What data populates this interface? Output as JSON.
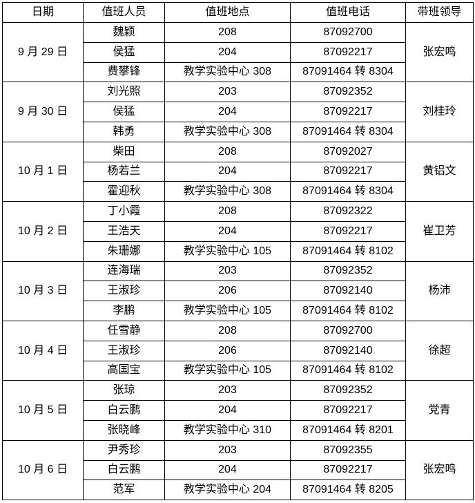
{
  "headers": [
    "日期",
    "值班人员",
    "值班地点",
    "值班电话",
    "带班领导"
  ],
  "days": [
    {
      "date": "9 月 29 日",
      "leader": "张宏鸣",
      "staff": [
        {
          "name": "魏颖",
          "place": "208",
          "phone": "87092700"
        },
        {
          "name": "侯猛",
          "place": "204",
          "phone": "87092217"
        },
        {
          "name": "费攀锋",
          "place": "教学实验中心 308",
          "phone": "87091464 转 8304"
        }
      ]
    },
    {
      "date": "9 月 30 日",
      "leader": "刘桂玲",
      "staff": [
        {
          "name": "刘光照",
          "place": "203",
          "phone": "87092352"
        },
        {
          "name": "侯猛",
          "place": "204",
          "phone": "87092217"
        },
        {
          "name": "韩勇",
          "place": "教学实验中心 308",
          "phone": "87091464 转 8304"
        }
      ]
    },
    {
      "date": "10 月 1 日",
      "leader": "黄铝文",
      "staff": [
        {
          "name": "柴田",
          "place": "208",
          "phone": "87092027"
        },
        {
          "name": "杨若兰",
          "place": "204",
          "phone": "87092217"
        },
        {
          "name": "霍迎秋",
          "place": "教学实验中心 308",
          "phone": "87091464 转 8304"
        }
      ]
    },
    {
      "date": "10 月 2 日",
      "leader": "崔卫芳",
      "staff": [
        {
          "name": "丁小霞",
          "place": "208",
          "phone": "87092322"
        },
        {
          "name": "王浩天",
          "place": "204",
          "phone": "87092217"
        },
        {
          "name": "朱珊娜",
          "place": "教学实验中心 105",
          "phone": "87091464 转 8102"
        }
      ]
    },
    {
      "date": "10 月 3 日",
      "leader": "杨沛",
      "staff": [
        {
          "name": "连海瑞",
          "place": "203",
          "phone": "87092352"
        },
        {
          "name": "王淑珍",
          "place": "206",
          "phone": "87092140"
        },
        {
          "name": "李鹏",
          "place": "教学实验中心 105",
          "phone": "87091464 转 8102"
        }
      ]
    },
    {
      "date": "10 月 4 日",
      "leader": "徐超",
      "staff": [
        {
          "name": "任雪静",
          "place": "208",
          "phone": "87092700"
        },
        {
          "name": "王淑珍",
          "place": "206",
          "phone": "87092140"
        },
        {
          "name": "高国宝",
          "place": "教学实验中心 105",
          "phone": "87091464 转 8102"
        }
      ]
    },
    {
      "date": "10 月 5 日",
      "leader": "党青",
      "staff": [
        {
          "name": "张琼",
          "place": "203",
          "phone": "87092352"
        },
        {
          "name": "白云鹏",
          "place": "204",
          "phone": "87092217"
        },
        {
          "name": "张晓峰",
          "place": "教学实验中心 310",
          "phone": "87091464 转 8201"
        }
      ]
    },
    {
      "date": "10 月 6 日",
      "leader": "张宏鸣",
      "staff": [
        {
          "name": "尹秀珍",
          "place": "203",
          "phone": "87092355"
        },
        {
          "name": "白云鹏",
          "place": "204",
          "phone": "87092217"
        },
        {
          "name": "范军",
          "place": "教学实验中心 204",
          "phone": "87091464 转 8205"
        }
      ]
    }
  ]
}
